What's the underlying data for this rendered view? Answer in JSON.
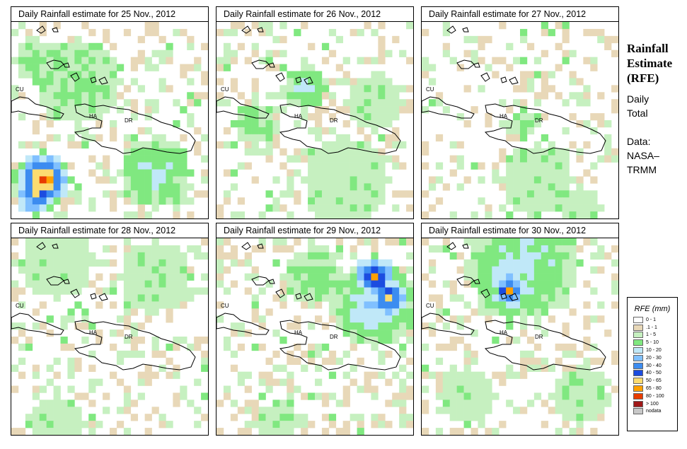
{
  "panels": [
    {
      "title": "Daily Rainfall estimate for  25 Nov., 2012"
    },
    {
      "title": "Daily Rainfall estimate for  26 Nov., 2012"
    },
    {
      "title": "Daily Rainfall estimate for  27 Nov., 2012"
    },
    {
      "title": "Daily Rainfall estimate for  28 Nov., 2012"
    },
    {
      "title": "Daily Rainfall estimate for  29 Nov., 2012"
    },
    {
      "title": "Daily Rainfall estimate for  30 Nov., 2012"
    }
  ],
  "map_labels": {
    "cuba": "CU",
    "haiti": "HA",
    "dominican_republic": "DR"
  },
  "sidebar": {
    "title_line1": "Rainfall",
    "title_line2": "Estimate",
    "title_line3": "(RFE)",
    "subtitle_line1": "Daily",
    "subtitle_line2": "Total",
    "source_line1": "Data:",
    "source_line2": "NASA–",
    "source_line3": "TRMM"
  },
  "legend": {
    "title": "RFE (mm)",
    "items": [
      {
        "label": "0 - 1",
        "color": "#ffffff"
      },
      {
        "label": ".1 - 1",
        "color": "#e8d8b8"
      },
      {
        "label": "1 - 5",
        "color": "#c6f0c0"
      },
      {
        "label": "5 - 10",
        "color": "#80e880"
      },
      {
        "label": "10 - 20",
        "color": "#c0e8f8"
      },
      {
        "label": "20 - 30",
        "color": "#80c0ff"
      },
      {
        "label": "30 - 40",
        "color": "#3c8cf0"
      },
      {
        "label": "40 - 50",
        "color": "#1c4ce0"
      },
      {
        "label": "50 - 65",
        "color": "#fcdc70"
      },
      {
        "label": "65 - 80",
        "color": "#ffa000"
      },
      {
        "label": "80 - 100",
        "color": "#e83c00"
      },
      {
        "label": "> 100",
        "color": "#a01818"
      },
      {
        "label": "nodata",
        "color": "#c8c8c8"
      }
    ]
  }
}
